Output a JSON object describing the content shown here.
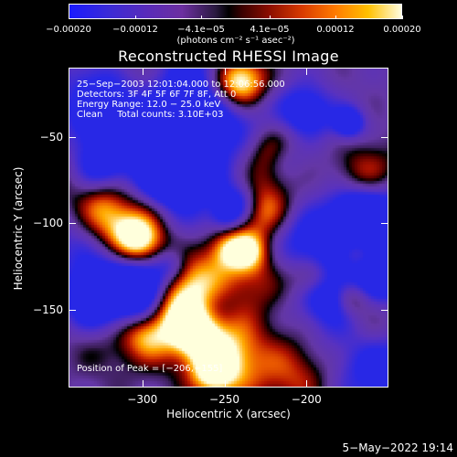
{
  "chart_data": {
    "type": "heatmap",
    "title": "Reconstructed RHESSI Image",
    "xlabel": "Heliocentric X (arcsec)",
    "ylabel": "Heliocentric Y (arcsec)",
    "xlim": [
      -345,
      -150
    ],
    "ylim": [
      -195,
      -10
    ],
    "x_ticks": [
      -300,
      -250,
      -200
    ],
    "y_ticks": [
      -50,
      -100,
      -150
    ],
    "x_tick_labels": [
      "−300",
      "−250",
      "−200"
    ],
    "y_tick_labels": [
      "−50",
      "−100",
      "−150"
    ],
    "colorbar": {
      "range": [
        -0.0002,
        0.0002
      ],
      "tick_values": [
        -0.0002,
        -0.00012,
        -4.1e-05,
        4.1e-05,
        0.00012,
        0.0002
      ],
      "tick_labels": [
        "−0.00020",
        "−0.00012",
        "−4.1e−05",
        "4.1e−05",
        "0.00012",
        "0.00020"
      ],
      "units": "(photons cm⁻² s⁻¹ asec⁻²)"
    },
    "annotations": [
      "25−Sep−2003 12:01:04.000 to 12:06:56.000",
      "Detectors: 3F 4F 5F 6F 7F 8F, Att 0",
      "Energy Range: 12.0 − 25.0 keV",
      "Clean     Total counts: 3.10E+03"
    ],
    "peak_label": "Position of Peak = [−206,−155]",
    "peak_position": [
      -206,
      -155
    ],
    "grid": false
  },
  "footer": {
    "date": "5−May−2022 19:14"
  },
  "colors": {
    "background": "#000000",
    "foreground": "#ffffff"
  }
}
